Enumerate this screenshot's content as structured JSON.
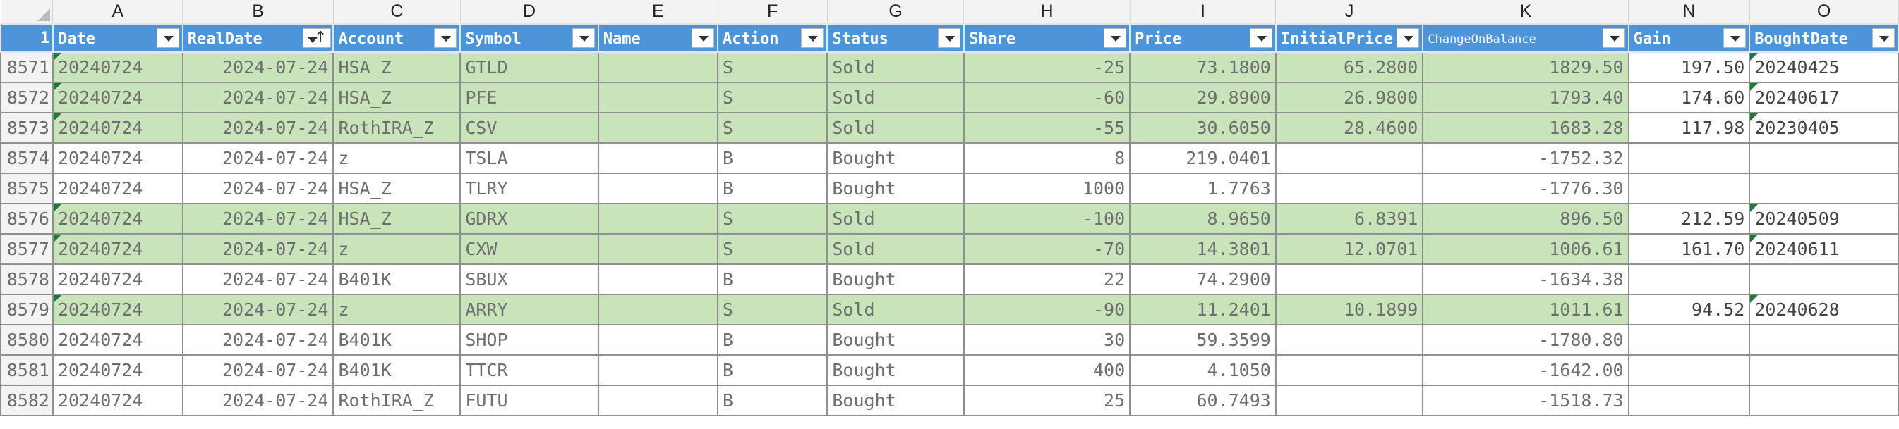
{
  "columns": [
    "A",
    "B",
    "C",
    "D",
    "E",
    "F",
    "G",
    "H",
    "I",
    "J",
    "K",
    "N",
    "O"
  ],
  "header_row": {
    "number": "1",
    "labels": [
      "Date",
      "RealDate",
      "Account",
      "Symbol",
      "Name",
      "Action",
      "Status",
      "Share",
      "Price",
      "InitialPrice",
      "ChangeOnBalance",
      "Gain",
      "BoughtDate"
    ],
    "sorted_column": "RealDate"
  },
  "rows": [
    {
      "n": "8571",
      "sold": true,
      "cells": [
        "20240724",
        "2024-07-24",
        "HSA_Z",
        "GTLD",
        "",
        "S",
        "Sold",
        "-25",
        "73.1800",
        "65.2800",
        "1829.50",
        "197.50",
        "20240425"
      ]
    },
    {
      "n": "8572",
      "sold": true,
      "cells": [
        "20240724",
        "2024-07-24",
        "HSA_Z",
        "PFE",
        "",
        "S",
        "Sold",
        "-60",
        "29.8900",
        "26.9800",
        "1793.40",
        "174.60",
        "20240617"
      ]
    },
    {
      "n": "8573",
      "sold": true,
      "cells": [
        "20240724",
        "2024-07-24",
        "RothIRA_Z",
        "CSV",
        "",
        "S",
        "Sold",
        "-55",
        "30.6050",
        "28.4600",
        "1683.28",
        "117.98",
        "20230405"
      ]
    },
    {
      "n": "8574",
      "sold": false,
      "cells": [
        "20240724",
        "2024-07-24",
        "z",
        "TSLA",
        "",
        "B",
        "Bought",
        "8",
        "219.0401",
        "",
        "-1752.32",
        "",
        ""
      ]
    },
    {
      "n": "8575",
      "sold": false,
      "cells": [
        "20240724",
        "2024-07-24",
        "HSA_Z",
        "TLRY",
        "",
        "B",
        "Bought",
        "1000",
        "1.7763",
        "",
        "-1776.30",
        "",
        ""
      ]
    },
    {
      "n": "8576",
      "sold": true,
      "cells": [
        "20240724",
        "2024-07-24",
        "HSA_Z",
        "GDRX",
        "",
        "S",
        "Sold",
        "-100",
        "8.9650",
        "6.8391",
        "896.50",
        "212.59",
        "20240509"
      ]
    },
    {
      "n": "8577",
      "sold": true,
      "cells": [
        "20240724",
        "2024-07-24",
        "z",
        "CXW",
        "",
        "S",
        "Sold",
        "-70",
        "14.3801",
        "12.0701",
        "1006.61",
        "161.70",
        "20240611"
      ]
    },
    {
      "n": "8578",
      "sold": false,
      "cells": [
        "20240724",
        "2024-07-24",
        "B401K",
        "SBUX",
        "",
        "B",
        "Bought",
        "22",
        "74.2900",
        "",
        "-1634.38",
        "",
        ""
      ]
    },
    {
      "n": "8579",
      "sold": true,
      "cells": [
        "20240724",
        "2024-07-24",
        "z",
        "ARRY",
        "",
        "S",
        "Sold",
        "-90",
        "11.2401",
        "10.1899",
        "1011.61",
        "94.52",
        "20240628"
      ]
    },
    {
      "n": "8580",
      "sold": false,
      "cells": [
        "20240724",
        "2024-07-24",
        "B401K",
        "SHOP",
        "",
        "B",
        "Bought",
        "30",
        "59.3599",
        "",
        "-1780.80",
        "",
        ""
      ]
    },
    {
      "n": "8581",
      "sold": false,
      "cells": [
        "20240724",
        "2024-07-24",
        "B401K",
        "TTCR",
        "",
        "B",
        "Bought",
        "400",
        "4.1050",
        "",
        "-1642.00",
        "",
        ""
      ]
    },
    {
      "n": "8582",
      "sold": false,
      "cells": [
        "20240724",
        "2024-07-24",
        "RothIRA_Z",
        "FUTU",
        "",
        "B",
        "Bought",
        "25",
        "60.7493",
        "",
        "-1518.73",
        "",
        ""
      ]
    }
  ],
  "colors": {
    "header_fill": "#4e94d8",
    "sold_fill": "#c9e4bb",
    "bought_fill": "#ffffff",
    "flag": "#1f7a3a"
  },
  "icons": {
    "filter": "filter-dropdown-icon",
    "sort": "sort-ascending-icon",
    "corner": "select-all-triangle-icon",
    "flag": "cell-note-indicator-icon"
  }
}
